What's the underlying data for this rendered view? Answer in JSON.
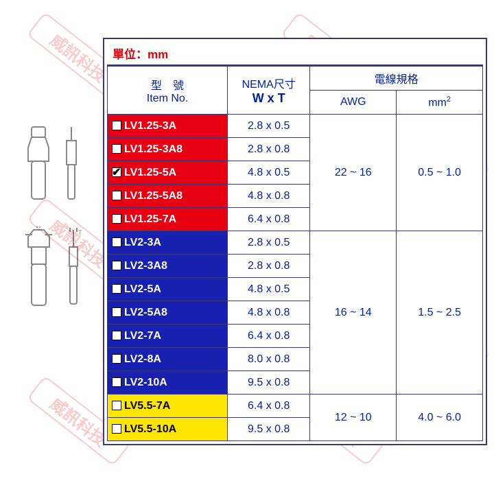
{
  "unit_label": "單位：mm",
  "headers": {
    "item_no_zh": "型　號",
    "item_no_en": "Item No.",
    "nema_label": "NEMA尺寸",
    "wxt_label": "W x T",
    "wire_label": "電線規格",
    "awg_label": "AWG",
    "mm2_label_html": "mm²"
  },
  "groups": [
    {
      "color_class": "bg-red",
      "awg": "22 ~ 16",
      "mm2": "0.5 ~ 1.0",
      "rows": [
        {
          "item": "LV1.25-3A",
          "wxt": "2.8 x 0.5",
          "checked": false
        },
        {
          "item": "LV1.25-3A8",
          "wxt": "2.8 x 0.8",
          "checked": false
        },
        {
          "item": "LV1.25-5A",
          "wxt": "4.8 x 0.5",
          "checked": true
        },
        {
          "item": "LV1.25-5A8",
          "wxt": "4.8 x 0.8",
          "checked": false
        },
        {
          "item": "LV1.25-7A",
          "wxt": "6.4 x 0.8",
          "checked": false
        }
      ]
    },
    {
      "color_class": "bg-blue",
      "awg": "16 ~ 14",
      "mm2": "1.5 ~ 2.5",
      "rows": [
        {
          "item": "LV2-3A",
          "wxt": "2.8 x 0.5",
          "checked": false
        },
        {
          "item": "LV2-3A8",
          "wxt": "2.8 x 0.8",
          "checked": false
        },
        {
          "item": "LV2-5A",
          "wxt": "4.8 x 0.5",
          "checked": false
        },
        {
          "item": "LV2-5A8",
          "wxt": "4.8 x 0.8",
          "checked": false
        },
        {
          "item": "LV2-7A",
          "wxt": "6.4 x 0.8",
          "checked": false
        },
        {
          "item": "LV2-8A",
          "wxt": "8.0 x 0.8",
          "checked": false
        },
        {
          "item": "LV2-10A",
          "wxt": "9.5 x 0.8",
          "checked": false
        }
      ]
    },
    {
      "color_class": "bg-yellow",
      "awg": "12 ~ 10",
      "mm2": "4.0 ~ 6.0",
      "rows": [
        {
          "item": "LV5.5-7A",
          "wxt": "6.4 x 0.8",
          "checked": false
        },
        {
          "item": "LV5.5-10A",
          "wxt": "9.5 x 0.8",
          "checked": false
        }
      ]
    }
  ],
  "watermark_text": "威訊科技",
  "colors": {
    "border": "#3a3a7a",
    "header_text": "#0020a0",
    "unit_text": "#e00000",
    "red": "#e60012",
    "blue": "#1820b0",
    "yellow": "#ffe600"
  },
  "column_widths_pct": [
    32,
    22,
    23,
    23
  ]
}
